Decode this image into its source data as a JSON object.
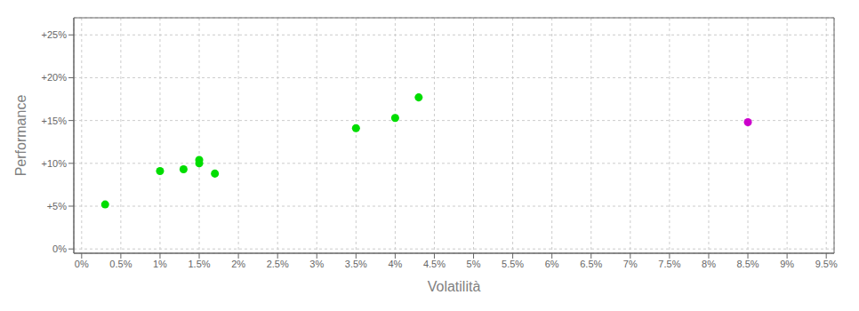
{
  "chart_data": {
    "type": "scatter",
    "xlabel": "Volatilità",
    "ylabel": "Performance",
    "xlim": [
      -0.001,
      0.096
    ],
    "ylim": [
      -0.005,
      0.27
    ],
    "xticks": [
      {
        "value": 0.0,
        "label": "0%"
      },
      {
        "value": 0.005,
        "label": "0.5%"
      },
      {
        "value": 0.01,
        "label": "1%"
      },
      {
        "value": 0.015,
        "label": "1.5%"
      },
      {
        "value": 0.02,
        "label": "2%"
      },
      {
        "value": 0.025,
        "label": "2.5%"
      },
      {
        "value": 0.03,
        "label": "3%"
      },
      {
        "value": 0.035,
        "label": "3.5%"
      },
      {
        "value": 0.04,
        "label": "4%"
      },
      {
        "value": 0.045,
        "label": "4.5%"
      },
      {
        "value": 0.05,
        "label": "5%"
      },
      {
        "value": 0.055,
        "label": "5.5%"
      },
      {
        "value": 0.06,
        "label": "6%"
      },
      {
        "value": 0.065,
        "label": "6.5%"
      },
      {
        "value": 0.07,
        "label": "7%"
      },
      {
        "value": 0.075,
        "label": "7.5%"
      },
      {
        "value": 0.08,
        "label": "8%"
      },
      {
        "value": 0.085,
        "label": "8.5%"
      },
      {
        "value": 0.09,
        "label": "9%"
      },
      {
        "value": 0.095,
        "label": "9.5%"
      }
    ],
    "yticks": [
      {
        "value": 0.0,
        "label": "0%"
      },
      {
        "value": 0.05,
        "label": "+5%"
      },
      {
        "value": 0.1,
        "label": "+10%"
      },
      {
        "value": 0.15,
        "label": "+15%"
      },
      {
        "value": 0.2,
        "label": "+20%"
      },
      {
        "value": 0.25,
        "label": "+25%"
      }
    ],
    "grid": true,
    "series": [
      {
        "color": "#00dd00",
        "x": [
          0.003,
          0.01,
          0.013,
          0.015,
          0.015,
          0.017,
          0.035,
          0.04,
          0.043
        ],
        "values": [
          0.052,
          0.091,
          0.093,
          0.1,
          0.104,
          0.088,
          0.141,
          0.153,
          0.177
        ]
      },
      {
        "color": "#cc00cc",
        "x": [
          0.085
        ],
        "values": [
          0.148
        ]
      }
    ]
  }
}
